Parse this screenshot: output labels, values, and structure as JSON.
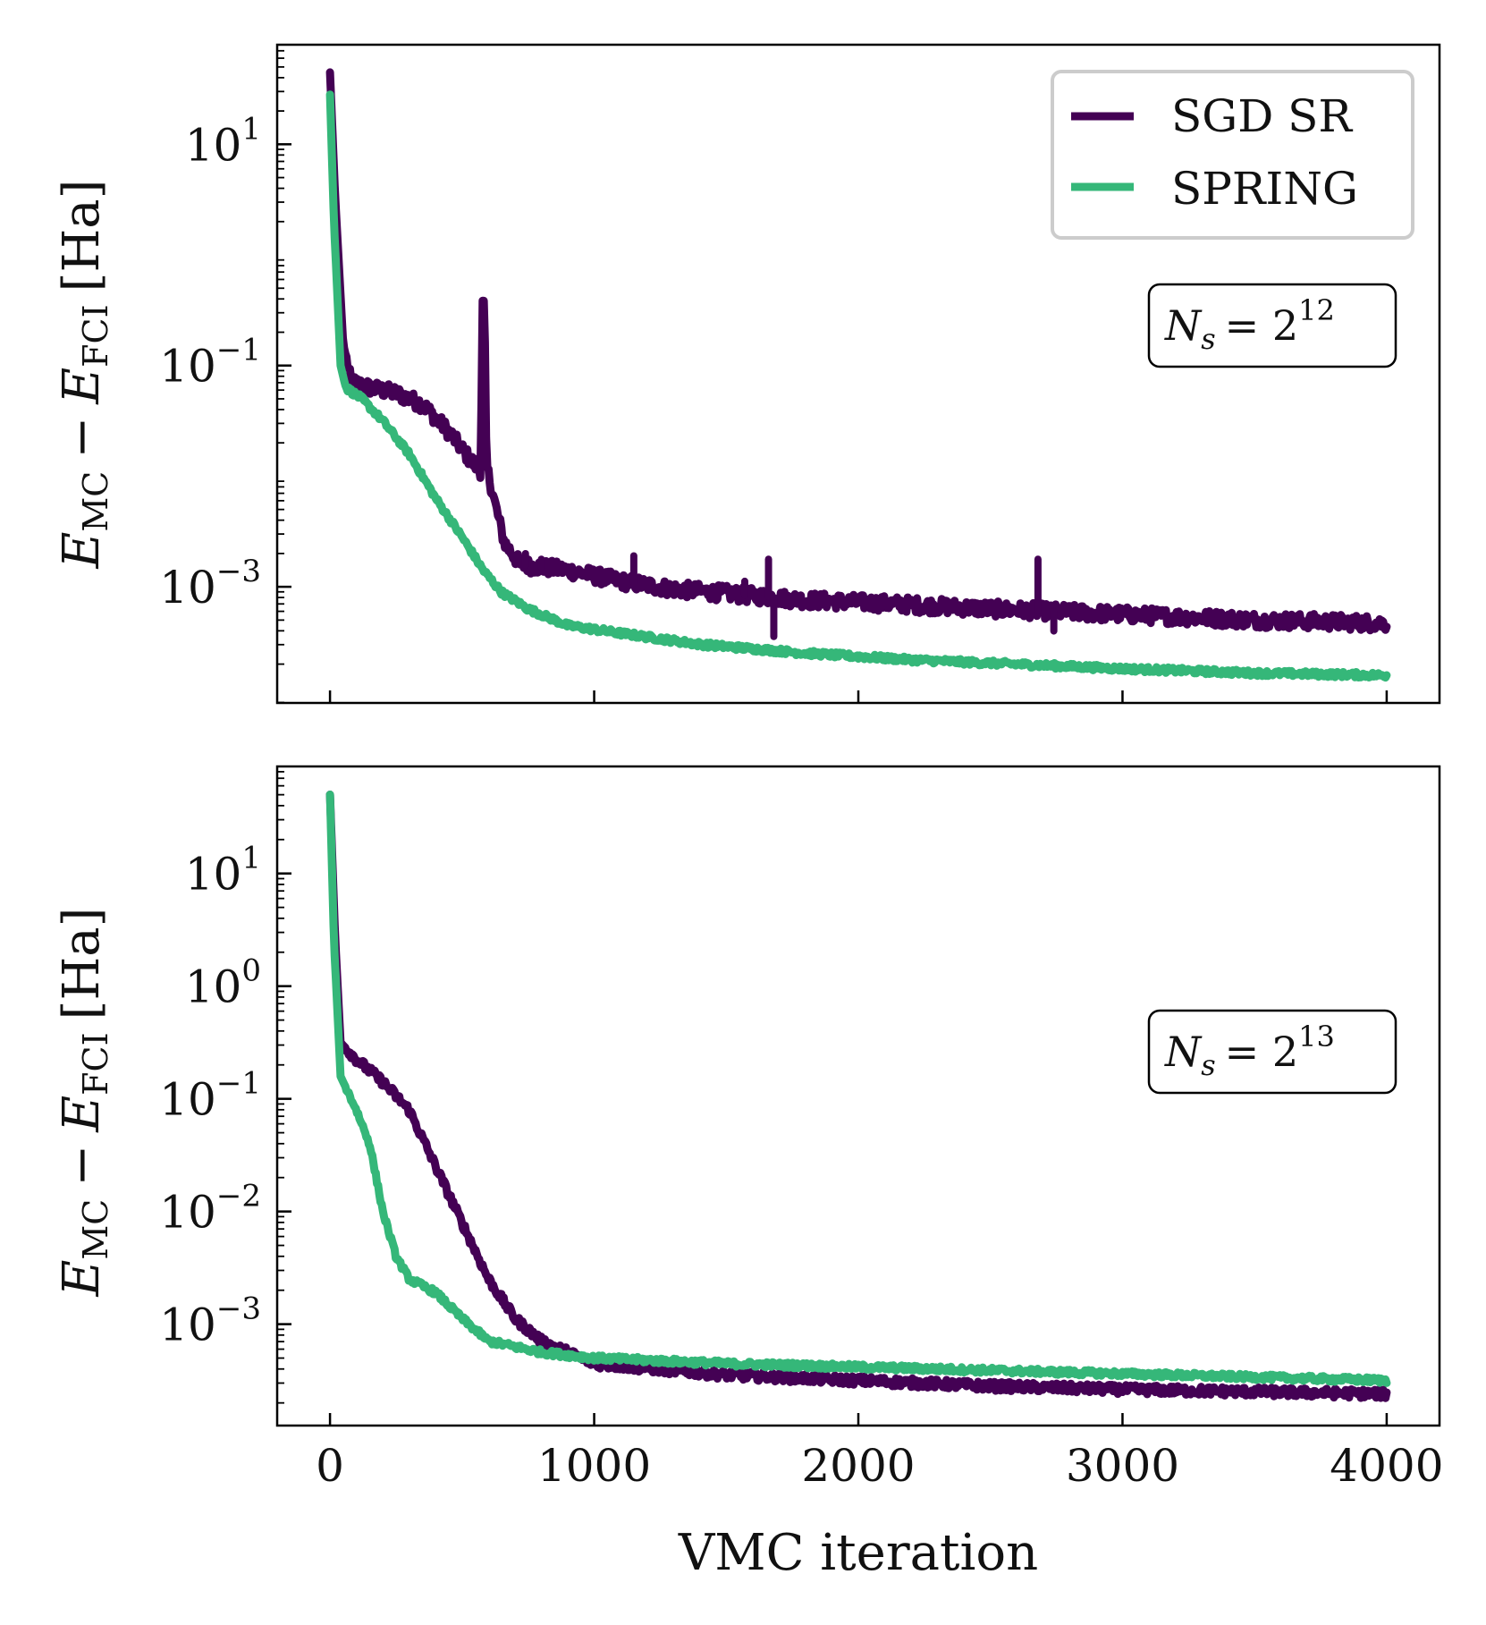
{
  "chart_data": [
    {
      "type": "line",
      "panel": "top",
      "yscale": "log",
      "xlim": [
        -200,
        4200
      ],
      "ylim_exp": [
        -4.05,
        1.9
      ],
      "xticks": [
        0,
        1000,
        2000,
        3000,
        4000
      ],
      "xtick_labels": [
        "",
        "",
        "",
        "",
        ""
      ],
      "yticks_exp": [
        1,
        -1,
        -3
      ],
      "ytick_labels": [
        {
          "base": "10",
          "exp": "1"
        },
        {
          "base": "10",
          "exp": "−1"
        },
        {
          "base": "10",
          "exp": "−3"
        }
      ],
      "ylabel": {
        "e1": "E",
        "sub1": "MC",
        "minus": "−",
        "e2": "E",
        "sub2": "FCI",
        "unit": "[Ha]"
      },
      "annotation": {
        "n": "N",
        "sub": "s",
        "eq": "= 2",
        "exp": "12"
      },
      "legend": {
        "position": "top-right",
        "entries": [
          "SGD SR",
          "SPRING"
        ]
      },
      "series": [
        {
          "name": "SGD SR",
          "color": "#440154",
          "noise": 0.07,
          "points_log10": [
            [
              0,
              1.65
            ],
            [
              20,
              0.5
            ],
            [
              50,
              -0.8
            ],
            [
              80,
              -1.15
            ],
            [
              150,
              -1.2
            ],
            [
              250,
              -1.25
            ],
            [
              350,
              -1.35
            ],
            [
              450,
              -1.6
            ],
            [
              530,
              -1.85
            ],
            [
              570,
              -1.95
            ],
            [
              578,
              -0.4
            ],
            [
              585,
              -0.5
            ],
            [
              592,
              -1.9
            ],
            [
              620,
              -2.2
            ],
            [
              660,
              -2.6
            ],
            [
              720,
              -2.8
            ],
            [
              900,
              -2.85
            ],
            [
              1100,
              -2.95
            ],
            [
              1300,
              -3.02
            ],
            [
              1600,
              -3.08
            ],
            [
              1800,
              -3.12
            ],
            [
              2100,
              -3.15
            ],
            [
              2500,
              -3.2
            ],
            [
              3000,
              -3.25
            ],
            [
              3500,
              -3.3
            ],
            [
              4000,
              -3.33
            ]
          ],
          "spikes": [
            [
              740,
              -2.7
            ],
            [
              800,
              -2.75
            ],
            [
              1150,
              -2.72
            ],
            [
              1570,
              -2.95
            ],
            [
              1660,
              -2.75
            ],
            [
              1680,
              -3.45
            ],
            [
              2680,
              -2.75
            ],
            [
              2740,
              -3.4
            ]
          ]
        },
        {
          "name": "SPRING",
          "color": "#35b779",
          "noise": 0.025,
          "points_log10": [
            [
              0,
              1.45
            ],
            [
              15,
              0.3
            ],
            [
              40,
              -1.0
            ],
            [
              60,
              -1.2
            ],
            [
              120,
              -1.3
            ],
            [
              200,
              -1.5
            ],
            [
              300,
              -1.8
            ],
            [
              400,
              -2.2
            ],
            [
              500,
              -2.55
            ],
            [
              580,
              -2.85
            ],
            [
              650,
              -3.05
            ],
            [
              750,
              -3.2
            ],
            [
              900,
              -3.35
            ],
            [
              1100,
              -3.42
            ],
            [
              1400,
              -3.52
            ],
            [
              1800,
              -3.6
            ],
            [
              2200,
              -3.66
            ],
            [
              2600,
              -3.7
            ],
            [
              3000,
              -3.74
            ],
            [
              3500,
              -3.78
            ],
            [
              4000,
              -3.8
            ]
          ],
          "spikes": []
        }
      ]
    },
    {
      "type": "line",
      "panel": "bottom",
      "yscale": "log",
      "xlim": [
        -200,
        4200
      ],
      "ylim_exp": [
        -3.9,
        1.95
      ],
      "xticks": [
        0,
        1000,
        2000,
        3000,
        4000
      ],
      "xtick_labels": [
        "0",
        "1000",
        "2000",
        "3000",
        "4000"
      ],
      "yticks_exp": [
        1,
        0,
        -1,
        -2,
        -3
      ],
      "ytick_labels": [
        {
          "base": "10",
          "exp": "1"
        },
        {
          "base": "10",
          "exp": "0"
        },
        {
          "base": "10",
          "exp": "−1"
        },
        {
          "base": "10",
          "exp": "−2"
        },
        {
          "base": "10",
          "exp": "−3"
        }
      ],
      "xlabel": "VMC iteration",
      "ylabel": {
        "e1": "E",
        "sub1": "MC",
        "minus": "−",
        "e2": "E",
        "sub2": "FCI",
        "unit": "[Ha]"
      },
      "annotation": {
        "n": "N",
        "sub": "s",
        "eq": "= 2",
        "exp": "13"
      },
      "series": [
        {
          "name": "SGD SR",
          "color": "#440154",
          "noise": 0.04,
          "points_log10": [
            [
              0,
              1.7
            ],
            [
              20,
              0.4
            ],
            [
              40,
              -0.5
            ],
            [
              100,
              -0.65
            ],
            [
              200,
              -0.85
            ],
            [
              300,
              -1.1
            ],
            [
              400,
              -1.6
            ],
            [
              500,
              -2.1
            ],
            [
              600,
              -2.6
            ],
            [
              700,
              -2.95
            ],
            [
              800,
              -3.15
            ],
            [
              1000,
              -3.35
            ],
            [
              1500,
              -3.45
            ],
            [
              2000,
              -3.5
            ],
            [
              2500,
              -3.55
            ],
            [
              3000,
              -3.58
            ],
            [
              3500,
              -3.6
            ],
            [
              4000,
              -3.62
            ]
          ],
          "spikes": []
        },
        {
          "name": "SPRING",
          "color": "#35b779",
          "noise": 0.025,
          "points_log10": [
            [
              0,
              1.7
            ],
            [
              15,
              0.4
            ],
            [
              40,
              -0.8
            ],
            [
              100,
              -1.1
            ],
            [
              150,
              -1.4
            ],
            [
              200,
              -2.0
            ],
            [
              250,
              -2.4
            ],
            [
              300,
              -2.6
            ],
            [
              400,
              -2.72
            ],
            [
              500,
              -2.95
            ],
            [
              600,
              -3.15
            ],
            [
              700,
              -3.2
            ],
            [
              800,
              -3.25
            ],
            [
              1000,
              -3.3
            ],
            [
              1500,
              -3.35
            ],
            [
              2000,
              -3.38
            ],
            [
              2500,
              -3.41
            ],
            [
              3000,
              -3.44
            ],
            [
              3500,
              -3.47
            ],
            [
              4000,
              -3.5
            ]
          ],
          "spikes": []
        }
      ]
    }
  ]
}
